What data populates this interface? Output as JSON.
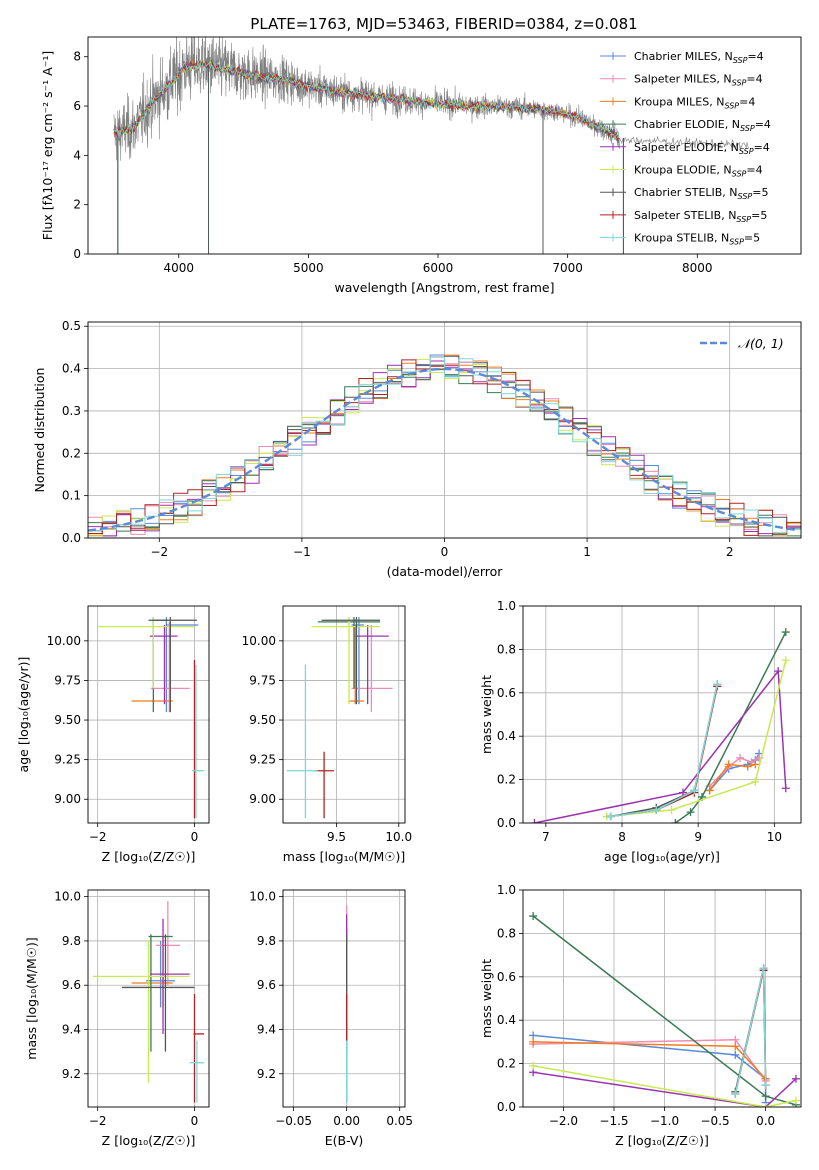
{
  "title": "PLATE=1763, MJD=53463, FIBERID=0384, z=0.081",
  "models": [
    {
      "name": "Chabrier MILES",
      "nssp": "4",
      "color": "#5b8bd8"
    },
    {
      "name": "Salpeter MILES",
      "nssp": "4",
      "color": "#f08cb4"
    },
    {
      "name": "Kroupa MILES",
      "nssp": "4",
      "color": "#f07c1e"
    },
    {
      "name": "Chabrier ELODIE",
      "nssp": "4",
      "color": "#3a7a55"
    },
    {
      "name": "Salpeter ELODIE",
      "nssp": "4",
      "color": "#9b33b0"
    },
    {
      "name": "Kroupa ELODIE",
      "nssp": "4",
      "color": "#c8ea50"
    },
    {
      "name": "Chabrier STELIB",
      "nssp": "5",
      "color": "#555555"
    },
    {
      "name": "Salpeter STELIB",
      "nssp": "5",
      "color": "#b22222"
    },
    {
      "name": "Kroupa STELIB",
      "nssp": "5",
      "color": "#7ed8d8"
    }
  ],
  "chart_data": [
    {
      "id": "spectrum",
      "type": "line",
      "xlabel": "wavelength [Angstrom, rest frame]",
      "ylabel": "Flux [fλ10⁻¹⁷ erg cm⁻² s⁻¹ A⁻¹]",
      "xlim": [
        3300,
        8800
      ],
      "ylim": [
        0,
        8.8
      ],
      "xticks": [
        4000,
        5000,
        6000,
        7000,
        8000
      ],
      "yticks": [
        0,
        2,
        4,
        6,
        8
      ],
      "data_color": "#808080",
      "continuum": {
        "x": [
          3500,
          3650,
          3800,
          3950,
          4050,
          4200,
          4400,
          4600,
          4800,
          5000,
          5200,
          5500,
          5800,
          6000,
          6300,
          6600,
          6900,
          7100,
          7300,
          7400
        ],
        "y": [
          4.9,
          5.1,
          6.2,
          7.0,
          7.6,
          7.7,
          7.45,
          7.2,
          7.1,
          6.8,
          6.6,
          6.4,
          6.2,
          6.1,
          6.0,
          5.95,
          5.8,
          5.5,
          5.0,
          4.7
        ]
      },
      "data_envelope": {
        "x": [
          3500,
          4000,
          5000,
          6000,
          7000,
          7400,
          8400
        ],
        "y": [
          0.9,
          1.2,
          0.6,
          0.4,
          0.3,
          0.4,
          0.2
        ]
      },
      "data_tail": {
        "x": [
          7400,
          7600,
          7800,
          8000,
          8200,
          8400
        ],
        "y": [
          4.6,
          4.6,
          4.55,
          4.5,
          4.45,
          4.4
        ]
      },
      "model_spikes_to_zero": [
        3530,
        4230,
        6810,
        7430
      ],
      "grid": false,
      "legend_position": "upper-right"
    },
    {
      "id": "residuals",
      "type": "step-histogram",
      "xlabel": "(data-model)/error",
      "ylabel": "Normed distribution",
      "xlim": [
        -2.5,
        2.5
      ],
      "ylim": [
        0,
        0.51
      ],
      "xticks": [
        -2,
        -1,
        0,
        1,
        2
      ],
      "yticks": [
        0.0,
        0.1,
        0.2,
        0.3,
        0.4,
        0.5
      ],
      "bin_width": 0.1,
      "reference_curve": {
        "label": "𝒩(0, 1)",
        "mean": 0,
        "sigma": 1,
        "color": "#5b8bd8"
      },
      "grid": true,
      "legend_position": "upper-right"
    },
    {
      "id": "z-age",
      "type": "errorbar",
      "xlabel": "Z [log₁₀(Z/Z☉)]",
      "ylabel": "age  [log₁₀(age/yr)]",
      "xlim": [
        -2.2,
        0.3
      ],
      "ylim": [
        8.85,
        10.22
      ],
      "xticks": [
        -2,
        0
      ],
      "yticks": [
        9.0,
        9.25,
        9.5,
        9.75,
        10.0
      ],
      "points": [
        {
          "m": 0,
          "x": -0.58,
          "xe": [
            -0.58,
            0.08
          ],
          "y": 10.1,
          "ye": [
            9.55,
            10.15
          ]
        },
        {
          "m": 1,
          "x": -0.52,
          "xe": [
            -0.9,
            -0.1
          ],
          "y": 9.7,
          "ye": [
            9.55,
            10.12
          ]
        },
        {
          "m": 2,
          "x": -0.5,
          "xe": [
            -1.3,
            -0.45
          ],
          "y": 9.62,
          "ye": [
            9.55,
            10.1
          ]
        },
        {
          "m": 3,
          "x": -0.85,
          "xe": [
            -0.88,
            -0.55
          ],
          "y": 10.13,
          "ye": [
            9.55,
            10.15
          ]
        },
        {
          "m": 4,
          "x": -0.62,
          "xe": [
            -0.92,
            -0.35
          ],
          "y": 10.03,
          "ye": [
            9.6,
            10.1
          ]
        },
        {
          "m": 5,
          "x": -0.85,
          "xe": [
            -2.0,
            0.0
          ],
          "y": 10.09,
          "ye": [
            9.7,
            10.15
          ]
        },
        {
          "m": 6,
          "x": -0.5,
          "xe": [
            -0.95,
            0.05
          ],
          "y": 10.13,
          "ye": [
            9.55,
            10.15
          ]
        },
        {
          "m": 7,
          "x": 0.0,
          "xe": [
            -0.02,
            0.02
          ],
          "y": 9.18,
          "ye": [
            8.88,
            9.88
          ]
        },
        {
          "m": 8,
          "x": 0.03,
          "xe": [
            -0.05,
            0.2
          ],
          "y": 9.18,
          "ye": [
            8.88,
            9.85
          ]
        }
      ],
      "grid": true
    },
    {
      "id": "mass-age",
      "type": "errorbar",
      "xlabel": "mass [log₁₀(M/M☉)]",
      "ylabel": "",
      "xlim": [
        9.07,
        10.05
      ],
      "ylim": [
        8.85,
        10.22
      ],
      "xticks": [
        9.5,
        10.0
      ],
      "yticks": [
        9.0,
        9.25,
        9.5,
        9.75,
        10.0
      ],
      "points": [
        {
          "m": 0,
          "x": 9.68,
          "xe": [
            9.62,
            9.72
          ],
          "y": 10.1,
          "ye": [
            9.6,
            10.15
          ]
        },
        {
          "m": 1,
          "x": 9.78,
          "xe": [
            9.62,
            9.95
          ],
          "y": 9.7,
          "ye": [
            9.55,
            10.1
          ]
        },
        {
          "m": 2,
          "x": 9.65,
          "xe": [
            9.6,
            9.72
          ],
          "y": 9.62,
          "ye": [
            9.6,
            10.1
          ]
        },
        {
          "m": 3,
          "x": 9.64,
          "xe": [
            9.35,
            9.85
          ],
          "y": 10.12,
          "ye": [
            9.7,
            10.15
          ]
        },
        {
          "m": 4,
          "x": 9.75,
          "xe": [
            9.65,
            9.92
          ],
          "y": 10.03,
          "ye": [
            9.6,
            10.1
          ]
        },
        {
          "m": 5,
          "x": 9.6,
          "xe": [
            9.3,
            9.85
          ],
          "y": 10.09,
          "ye": [
            9.6,
            10.15
          ]
        },
        {
          "m": 6,
          "x": 9.66,
          "xe": [
            9.38,
            9.85
          ],
          "y": 10.13,
          "ye": [
            9.6,
            10.15
          ]
        },
        {
          "m": 7,
          "x": 9.4,
          "xe": [
            9.32,
            9.48
          ],
          "y": 9.18,
          "ye": [
            8.88,
            9.3
          ]
        },
        {
          "m": 8,
          "x": 9.25,
          "xe": [
            9.1,
            9.35
          ],
          "y": 9.18,
          "ye": [
            8.88,
            9.85
          ]
        }
      ],
      "grid": true
    },
    {
      "id": "weight-age",
      "type": "line-markers",
      "xlabel": "age  [log₁₀(age/yr)]",
      "ylabel": "mass weight",
      "xlim": [
        6.7,
        10.35
      ],
      "ylim": [
        0,
        1.0
      ],
      "xticks": [
        7,
        8,
        9,
        10
      ],
      "yticks": [
        0.0,
        0.2,
        0.4,
        0.6,
        0.8,
        1.0
      ],
      "series": [
        {
          "m": 0,
          "x": [
            9.15,
            9.4,
            9.65,
            9.75,
            9.8
          ],
          "y": [
            0.15,
            0.25,
            0.27,
            0.29,
            0.32
          ]
        },
        {
          "m": 1,
          "x": [
            9.15,
            9.4,
            9.55,
            9.7,
            9.8
          ],
          "y": [
            0.17,
            0.26,
            0.3,
            0.28,
            0.3
          ]
        },
        {
          "m": 2,
          "x": [
            9.15,
            9.4,
            9.65,
            9.75
          ],
          "y": [
            0.15,
            0.27,
            0.26,
            0.27
          ]
        },
        {
          "m": 3,
          "x": [
            8.7,
            8.9,
            9.05,
            10.15
          ],
          "y": [
            0.0,
            0.05,
            0.12,
            0.88
          ]
        },
        {
          "m": 4,
          "x": [
            6.85,
            8.8,
            10.05,
            10.15
          ],
          "y": [
            0.0,
            0.14,
            0.7,
            0.16
          ]
        },
        {
          "m": 5,
          "x": [
            7.8,
            8.65,
            9.75,
            10.15
          ],
          "y": [
            0.03,
            0.06,
            0.19,
            0.75
          ]
        },
        {
          "m": 6,
          "x": [
            7.85,
            8.45,
            8.95,
            9.25
          ],
          "y": [
            0.03,
            0.07,
            0.15,
            0.64
          ]
        },
        {
          "m": 7,
          "x": [
            7.85,
            8.45,
            8.95,
            9.25
          ],
          "y": [
            0.03,
            0.06,
            0.14,
            0.63
          ]
        },
        {
          "m": 8,
          "x": [
            7.85,
            8.45,
            8.95,
            9.25
          ],
          "y": [
            0.03,
            0.06,
            0.15,
            0.64
          ]
        }
      ],
      "grid": true
    },
    {
      "id": "z-mass",
      "type": "errorbar",
      "xlabel": "Z [log₁₀(Z/Z☉)]",
      "ylabel": "mass [log₁₀(M/M☉)]",
      "xlim": [
        -2.2,
        0.3
      ],
      "ylim": [
        9.05,
        10.03
      ],
      "xticks": [
        -2,
        0
      ],
      "yticks": [
        9.2,
        9.4,
        9.6,
        9.8,
        10.0
      ],
      "points": [
        {
          "m": 0,
          "x": -0.7,
          "xe": [
            -1.0,
            -0.4
          ],
          "y": 9.62,
          "ye": [
            9.5,
            9.8
          ]
        },
        {
          "m": 1,
          "x": -0.55,
          "xe": [
            -0.8,
            -0.3
          ],
          "y": 9.78,
          "ye": [
            9.6,
            9.98
          ]
        },
        {
          "m": 2,
          "x": -0.65,
          "xe": [
            -1.3,
            -0.45
          ],
          "y": 9.61,
          "ye": [
            9.5,
            9.82
          ]
        },
        {
          "m": 3,
          "x": -0.9,
          "xe": [
            -0.95,
            -0.45
          ],
          "y": 9.82,
          "ye": [
            9.3,
            9.83
          ]
        },
        {
          "m": 4,
          "x": -0.65,
          "xe": [
            -0.92,
            -0.1
          ],
          "y": 9.65,
          "ye": [
            9.38,
            9.9
          ]
        },
        {
          "m": 5,
          "x": -0.95,
          "xe": [
            -2.1,
            -0.1
          ],
          "y": 9.64,
          "ye": [
            9.16,
            9.8
          ]
        },
        {
          "m": 6,
          "x": -0.6,
          "xe": [
            -1.5,
            0.0
          ],
          "y": 9.59,
          "ye": [
            9.3,
            9.83
          ]
        },
        {
          "m": 7,
          "x": 0.0,
          "xe": [
            -0.02,
            0.2
          ],
          "y": 9.38,
          "ye": [
            9.07,
            9.56
          ]
        },
        {
          "m": 8,
          "x": 0.05,
          "xe": [
            -0.1,
            0.2
          ],
          "y": 9.25,
          "ye": [
            9.07,
            9.35
          ]
        }
      ],
      "grid": true
    },
    {
      "id": "ebv-mass",
      "type": "errorbar",
      "xlabel": "E(B-V)",
      "ylabel": "",
      "xlim": [
        -0.06,
        0.055
      ],
      "ylim": [
        9.05,
        10.03
      ],
      "xticks": [
        -0.05,
        0.0,
        0.05
      ],
      "yticks": [
        9.2,
        9.4,
        9.6,
        9.8,
        10.0
      ],
      "points": [
        {
          "m": 0,
          "x": 0.0,
          "xe": [
            0,
            0
          ],
          "y": 9.62,
          "ye": [
            9.5,
            9.82
          ]
        },
        {
          "m": 1,
          "x": 0.0,
          "xe": [
            0,
            0
          ],
          "y": 9.78,
          "ye": [
            9.6,
            9.96
          ]
        },
        {
          "m": 2,
          "x": 0.0,
          "xe": [
            0,
            0
          ],
          "y": 9.61,
          "ye": [
            9.5,
            9.8
          ]
        },
        {
          "m": 3,
          "x": 0.0,
          "xe": [
            0,
            0
          ],
          "y": 9.82,
          "ye": [
            9.3,
            9.85
          ]
        },
        {
          "m": 4,
          "x": 0.0,
          "xe": [
            0,
            0
          ],
          "y": 9.65,
          "ye": [
            9.38,
            9.92
          ]
        },
        {
          "m": 5,
          "x": 0.0,
          "xe": [
            0,
            0
          ],
          "y": 9.64,
          "ye": [
            9.16,
            9.8
          ]
        },
        {
          "m": 6,
          "x": 0.0,
          "xe": [
            0,
            0
          ],
          "y": 9.59,
          "ye": [
            9.3,
            9.83
          ]
        },
        {
          "m": 7,
          "x": 0.0,
          "xe": [
            0,
            0
          ],
          "y": 9.38,
          "ye": [
            9.07,
            9.56
          ]
        },
        {
          "m": 8,
          "x": 0.0,
          "xe": [
            0,
            0
          ],
          "y": 9.25,
          "ye": [
            9.07,
            9.35
          ]
        }
      ],
      "grid": true
    },
    {
      "id": "weight-z",
      "type": "line-markers",
      "xlabel": "Z [log₁₀(Z/Z☉)]",
      "ylabel": "mass weight",
      "xlim": [
        -2.4,
        0.35
      ],
      "ylim": [
        0,
        1.0
      ],
      "xticks": [
        -2.0,
        -1.5,
        -1.0,
        -0.5,
        0.0
      ],
      "yticks": [
        0.0,
        0.2,
        0.4,
        0.6,
        0.8,
        1.0
      ],
      "series": [
        {
          "m": 0,
          "x": [
            -2.3,
            -0.3,
            0.0,
            0.0
          ],
          "y": [
            0.33,
            0.24,
            0.13,
            0.02
          ]
        },
        {
          "m": 1,
          "x": [
            -2.3,
            -0.3,
            0.0
          ],
          "y": [
            0.29,
            0.31,
            0.12
          ]
        },
        {
          "m": 2,
          "x": [
            -2.3,
            -0.3,
            0.0
          ],
          "y": [
            0.3,
            0.28,
            0.13
          ]
        },
        {
          "m": 3,
          "x": [
            -2.3,
            0.0,
            0.3
          ],
          "y": [
            0.88,
            0.05,
            0.01
          ]
        },
        {
          "m": 4,
          "x": [
            -2.3,
            0.0,
            0.3
          ],
          "y": [
            0.16,
            0.0,
            0.13
          ]
        },
        {
          "m": 5,
          "x": [
            -2.3,
            0.0,
            0.3
          ],
          "y": [
            0.19,
            0.0,
            0.03
          ]
        },
        {
          "m": 6,
          "x": [
            -0.3,
            -0.02,
            0.0
          ],
          "y": [
            0.07,
            0.64,
            0.1
          ]
        },
        {
          "m": 7,
          "x": [
            -0.3,
            -0.02,
            0.0
          ],
          "y": [
            0.06,
            0.63,
            0.1
          ]
        },
        {
          "m": 8,
          "x": [
            -0.3,
            -0.02,
            0.0
          ],
          "y": [
            0.06,
            0.64,
            0.1
          ]
        }
      ],
      "grid": true
    }
  ]
}
